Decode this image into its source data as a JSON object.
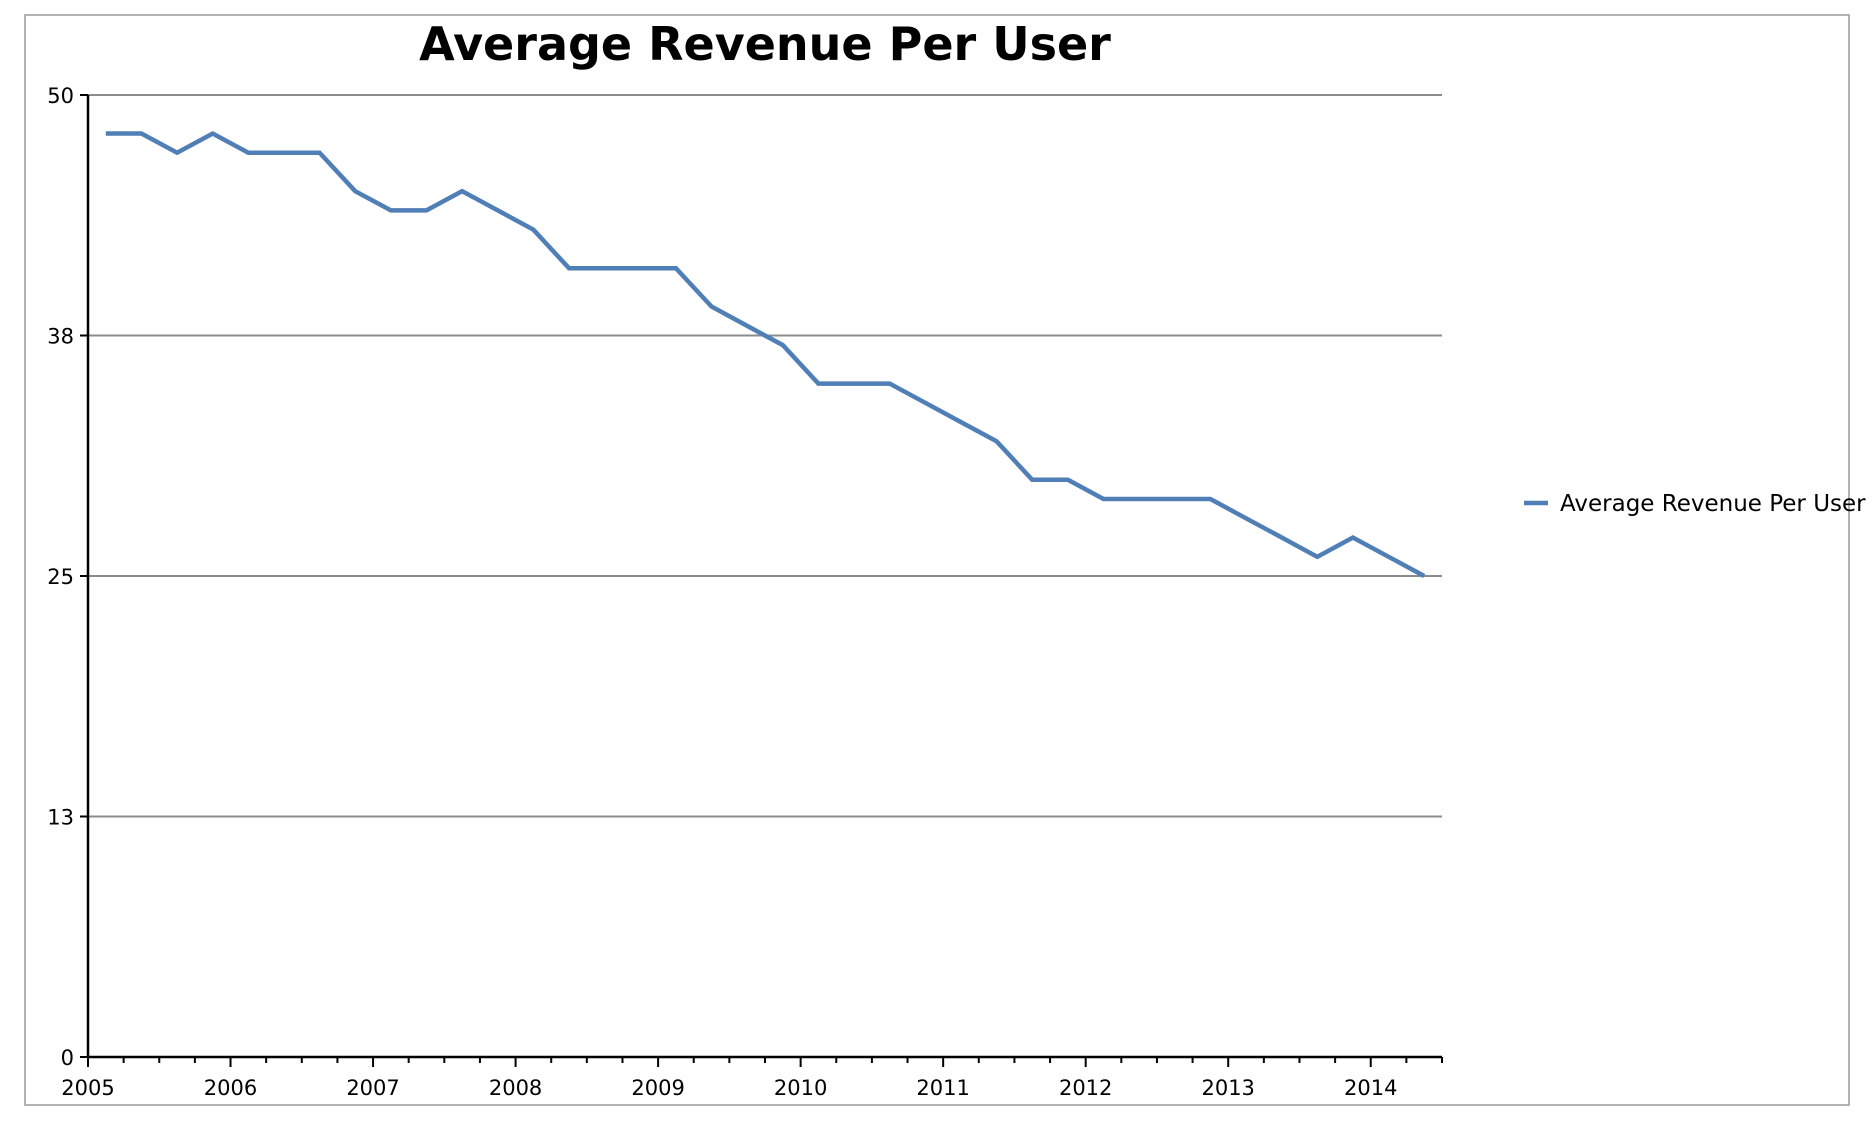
{
  "chart_data": {
    "type": "line",
    "title": "Average Revenue Per User",
    "xlabel": "",
    "ylabel": "",
    "ylim": [
      0,
      50
    ],
    "yticks": [
      {
        "value": 0,
        "label": "0"
      },
      {
        "value": 12.5,
        "label": "13"
      },
      {
        "value": 25,
        "label": "25"
      },
      {
        "value": 37.5,
        "label": "38"
      },
      {
        "value": 50,
        "label": "50"
      }
    ],
    "xlim": [
      2005,
      2014.5
    ],
    "xticks": [
      {
        "value": 2005,
        "label": "2005"
      },
      {
        "value": 2006,
        "label": "2006"
      },
      {
        "value": 2007,
        "label": "2007"
      },
      {
        "value": 2008,
        "label": "2008"
      },
      {
        "value": 2009,
        "label": "2009"
      },
      {
        "value": 2010,
        "label": "2010"
      },
      {
        "value": 2011,
        "label": "2011"
      },
      {
        "value": 2012,
        "label": "2012"
      },
      {
        "value": 2013,
        "label": "2013"
      },
      {
        "value": 2014,
        "label": "2014"
      }
    ],
    "grid": true,
    "legend_position": "right",
    "colors": {
      "series": "#4f7fb6",
      "grid": "#8c8c8c",
      "axis": "#000000",
      "border": "#9a9a9a"
    },
    "series": [
      {
        "name": "Average Revenue Per User",
        "x": [
          2005.125,
          2005.375,
          2005.625,
          2005.875,
          2006.125,
          2006.375,
          2006.625,
          2006.875,
          2007.125,
          2007.375,
          2007.625,
          2007.875,
          2008.125,
          2008.375,
          2008.625,
          2008.875,
          2009.125,
          2009.375,
          2009.625,
          2009.875,
          2010.125,
          2010.375,
          2010.625,
          2010.875,
          2011.125,
          2011.375,
          2011.625,
          2011.875,
          2012.125,
          2012.375,
          2012.625,
          2012.875,
          2013.125,
          2013.375,
          2013.625,
          2013.875,
          2014.125,
          2014.375
        ],
        "values": [
          48,
          48,
          47,
          48,
          47,
          47,
          47,
          45,
          44,
          44,
          45,
          44,
          43,
          41,
          41,
          41,
          41,
          39,
          38,
          37,
          35,
          35,
          35,
          34,
          33,
          32,
          30,
          30,
          29,
          29,
          29,
          29,
          28,
          27,
          26,
          27,
          26,
          25
        ]
      }
    ]
  }
}
